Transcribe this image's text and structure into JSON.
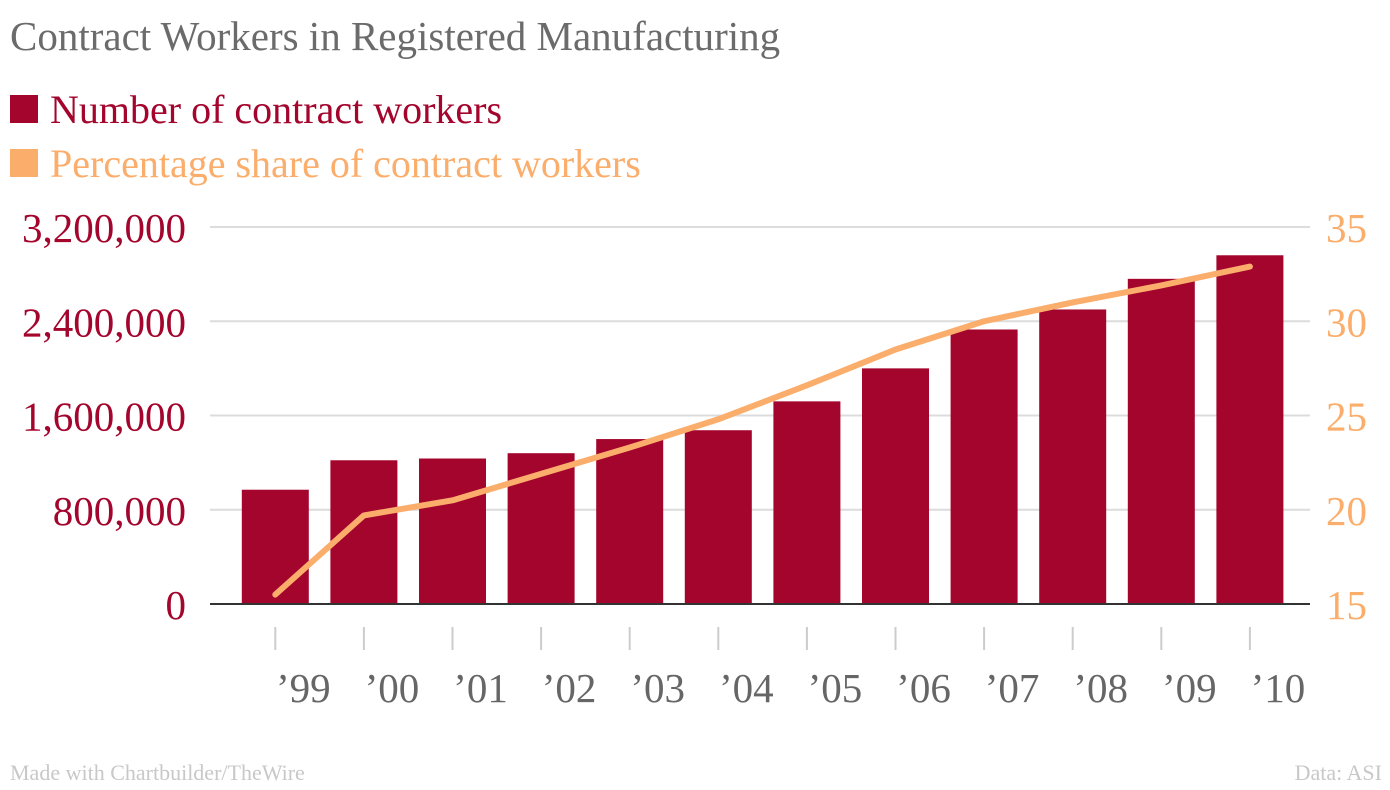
{
  "title": "Contract Workers in Registered Manufacturing",
  "legend": [
    {
      "label": "Number of contract workers",
      "color": "#a3052d"
    },
    {
      "label": "Percentage share of contract workers",
      "color": "#fbad6b"
    }
  ],
  "footer": {
    "credit": "Made with Chartbuilder/TheWire",
    "source": "Data: ASI"
  },
  "chart_data": {
    "type": "bar",
    "categories": [
      "’99",
      "’00",
      "’01",
      "’02",
      "’03",
      "’04",
      "’05",
      "’06",
      "’07",
      "’08",
      "’09",
      "’10"
    ],
    "series": [
      {
        "name": "Number of contract workers",
        "type": "bar",
        "axis": "left",
        "color": "#a3052d",
        "values": [
          970000,
          1220000,
          1235000,
          1280000,
          1400000,
          1475000,
          1720000,
          2000000,
          2330000,
          2500000,
          2760000,
          2960000
        ]
      },
      {
        "name": "Percentage share of contract workers",
        "type": "line",
        "axis": "right",
        "color": "#fbad6b",
        "values": [
          15.5,
          19.7,
          20.5,
          21.9,
          23.3,
          24.8,
          26.6,
          28.5,
          30.0,
          31.0,
          31.9,
          32.9
        ]
      }
    ],
    "y_left": {
      "ylim": [
        0,
        3200000
      ],
      "ticks": [
        0,
        800000,
        1600000,
        2400000,
        3200000
      ],
      "tick_labels": [
        "0",
        "800,000",
        "1,600,000",
        "2,400,000",
        "3,200,000"
      ],
      "color": "#a3052d"
    },
    "y_right": {
      "ylim": [
        15,
        35
      ],
      "ticks": [
        15,
        20,
        25,
        30,
        35
      ],
      "tick_labels": [
        "15",
        "20",
        "25",
        "30",
        "35"
      ],
      "color": "#fbad6b"
    },
    "grid": true,
    "legend_position": "top-left"
  }
}
